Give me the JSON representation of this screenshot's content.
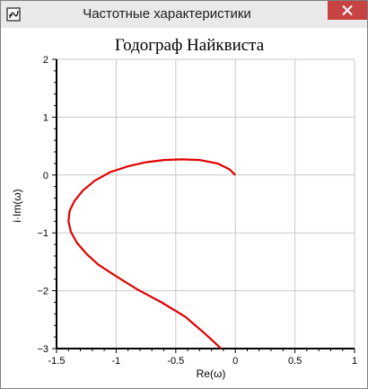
{
  "window": {
    "title": "Частотные характеристики",
    "icon": "app-icon",
    "close_icon": "close-icon",
    "close_color": "#c74343"
  },
  "chart_data": {
    "type": "line",
    "title": "Годограф Найквиста",
    "xlabel": "Re(ω)",
    "ylabel": "i·Im(ω)",
    "xlim": [
      -1.5,
      1
    ],
    "ylim": [
      -3,
      2
    ],
    "x_ticks": [
      -1.5,
      -1,
      -0.5,
      0,
      0.5,
      1
    ],
    "x_tick_labels": [
      "-1.5",
      "-1",
      "-0.5",
      "0",
      "0.5",
      "1"
    ],
    "y_ticks": [
      2,
      1,
      0,
      -1,
      -2,
      -3
    ],
    "y_tick_labels": [
      "2",
      "1",
      "0",
      "−1",
      "−2",
      "−3"
    ],
    "grid": true,
    "series": [
      {
        "color": "#e00000",
        "x": [
          0,
          -0.05,
          -0.15,
          -0.3,
          -0.45,
          -0.6,
          -0.75,
          -0.9,
          -1.05,
          -1.18,
          -1.28,
          -1.35,
          -1.39,
          -1.4,
          -1.38,
          -1.33,
          -1.25,
          -1.15,
          -1.0,
          -0.82,
          -0.62,
          -0.42,
          -0.25,
          -0.12
        ],
        "y": [
          0,
          0.1,
          0.2,
          0.26,
          0.27,
          0.26,
          0.22,
          0.15,
          0.05,
          -0.1,
          -0.27,
          -0.45,
          -0.62,
          -0.8,
          -0.98,
          -1.17,
          -1.36,
          -1.55,
          -1.75,
          -1.98,
          -2.2,
          -2.45,
          -2.75,
          -3.0
        ]
      }
    ]
  }
}
